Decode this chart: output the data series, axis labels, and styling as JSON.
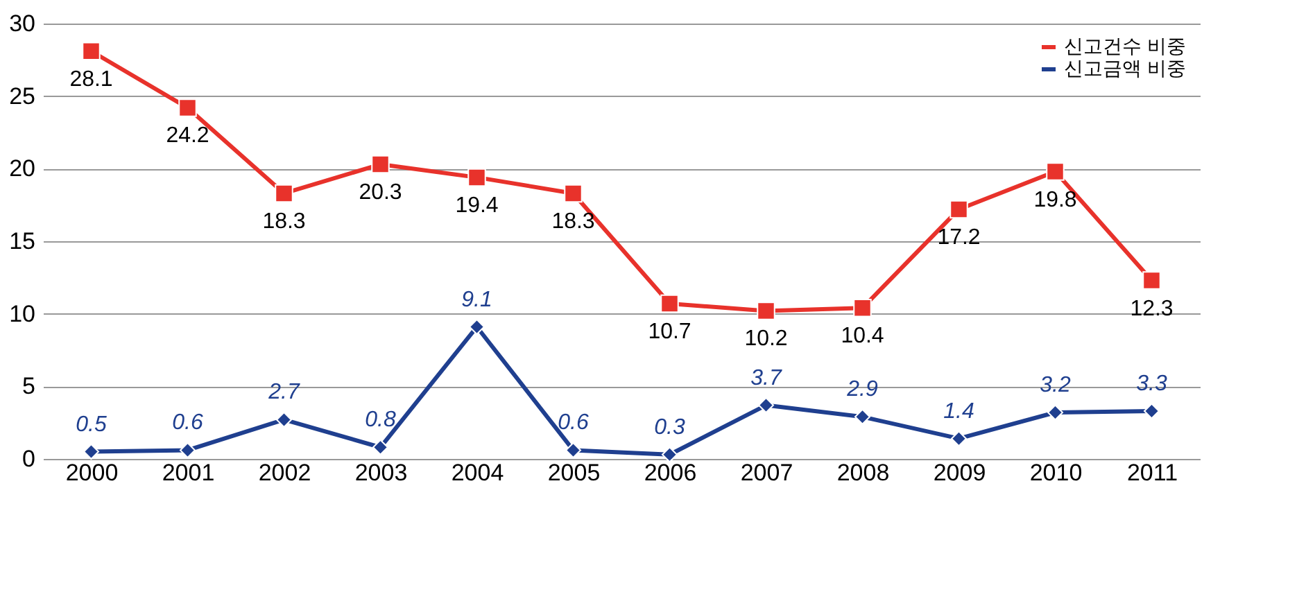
{
  "chart_data": {
    "type": "line",
    "categories": [
      "2000",
      "2001",
      "2002",
      "2003",
      "2004",
      "2005",
      "2006",
      "2007",
      "2008",
      "2009",
      "2010",
      "2011"
    ],
    "series": [
      {
        "name": "신고건수 비중",
        "color": "#e8322b",
        "marker": "square",
        "values": [
          28.1,
          24.2,
          18.3,
          20.3,
          19.4,
          18.3,
          10.7,
          10.2,
          10.4,
          17.2,
          19.8,
          12.3
        ]
      },
      {
        "name": "신고금액 비중",
        "color": "#1f3f8f",
        "marker": "diamond",
        "values": [
          0.5,
          0.6,
          2.7,
          0.8,
          9.1,
          0.6,
          0.3,
          3.7,
          2.9,
          1.4,
          3.2,
          3.3
        ]
      }
    ],
    "ylim": [
      0,
      30
    ],
    "yticks": [
      0,
      5,
      10,
      15,
      20,
      25,
      30
    ],
    "grid": "y",
    "legend": "top right",
    "data_labels": true,
    "line_style": "solid"
  }
}
